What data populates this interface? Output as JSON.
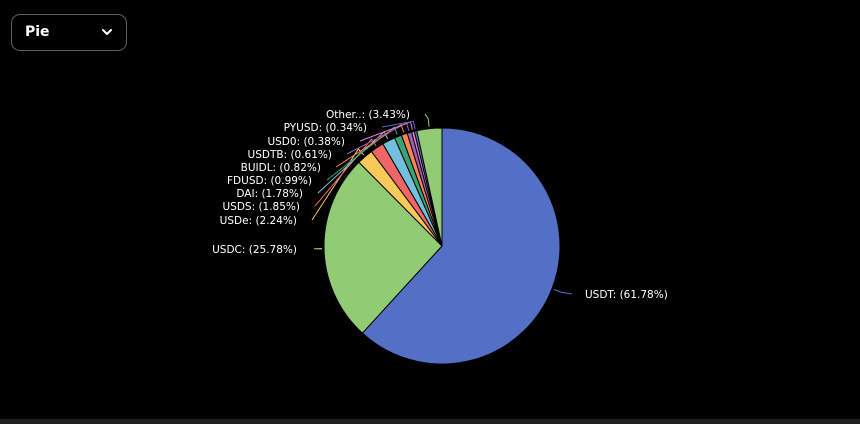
{
  "controls": {
    "chart_type": "Pie",
    "chevron_icon": "chevron-down-icon"
  },
  "chart_data": {
    "type": "pie",
    "slices": [
      {
        "name": "USDT",
        "value": 61.78,
        "label": "USDT: (61.78%)",
        "color": "#5470c6"
      },
      {
        "name": "USDC",
        "value": 25.78,
        "label": "USDC: (25.78%)",
        "color": "#91cc75"
      },
      {
        "name": "USDe",
        "value": 2.24,
        "label": "USDe: (2.24%)",
        "color": "#fac858"
      },
      {
        "name": "USDS",
        "value": 1.85,
        "label": "USDS: (1.85%)",
        "color": "#ee6666"
      },
      {
        "name": "DAI",
        "value": 1.78,
        "label": "DAI: (1.78%)",
        "color": "#73c0de"
      },
      {
        "name": "FDUSD",
        "value": 0.99,
        "label": "FDUSD: (0.99%)",
        "color": "#3ba272"
      },
      {
        "name": "BUIDL",
        "value": 0.82,
        "label": "BUIDL: (0.82%)",
        "color": "#fc8452"
      },
      {
        "name": "USDTB",
        "value": 0.61,
        "label": "USDTB: (0.61%)",
        "color": "#9a60b4"
      },
      {
        "name": "USD0",
        "value": 0.38,
        "label": "USD0: (0.38%)",
        "color": "#ea7ccc"
      },
      {
        "name": "PYUSD",
        "value": 0.34,
        "label": "PYUSD: (0.34%)",
        "color": "#5470c6"
      },
      {
        "name": "Other..",
        "value": 3.43,
        "label": "Other..: (3.43%)",
        "color": "#91cc75"
      }
    ],
    "label_color": "#ffffff",
    "background": "#000000"
  }
}
